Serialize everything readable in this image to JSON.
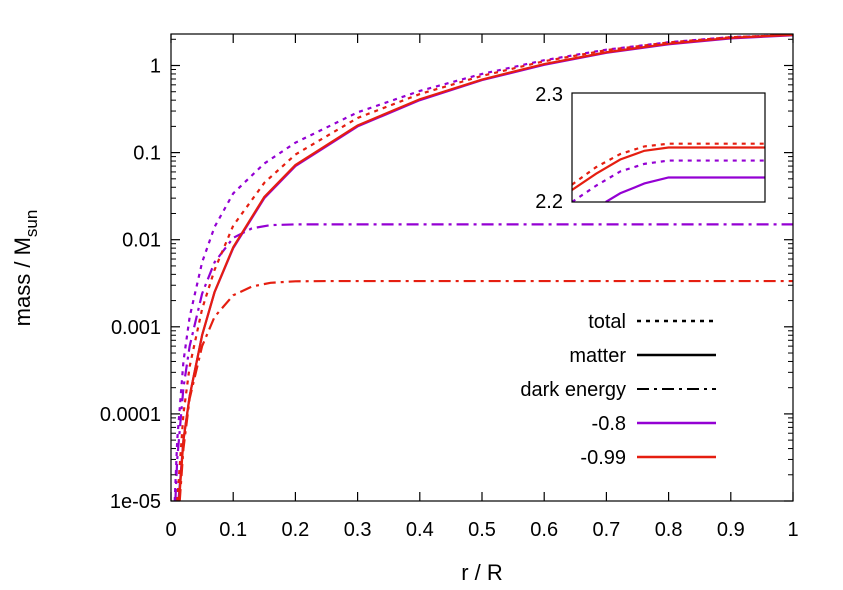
{
  "chart_data": {
    "type": "line",
    "xlabel": "r / R",
    "ylabel": "mass / M",
    "ylabel_sub": "sun",
    "xlim": [
      0,
      1
    ],
    "ylim": [
      1e-05,
      2.3
    ],
    "yscale": "log",
    "x_ticks": [
      "0",
      "0.1",
      "0.2",
      "0.3",
      "0.4",
      "0.5",
      "0.6",
      "0.7",
      "0.8",
      "0.9",
      "1"
    ],
    "y_ticks": [
      "1e-05",
      "0.0001",
      "0.001",
      "0.01",
      "0.1",
      "1"
    ],
    "grid": false,
    "legend": {
      "position": "center-right",
      "style_entries": [
        {
          "label": "total",
          "dash": "dotted"
        },
        {
          "label": "matter",
          "dash": "solid"
        },
        {
          "label": "dark energy",
          "dash": "dashdot"
        }
      ],
      "color_entries": [
        {
          "label": "-0.8",
          "color": "#9400d3"
        },
        {
          "label": "-0.99",
          "color": "#e51e10"
        }
      ]
    },
    "series": [
      {
        "group": "-0.8",
        "kind": "total",
        "color": "#9400d3",
        "dash": "dotted",
        "x": [
          0.006,
          0.01,
          0.02,
          0.03,
          0.05,
          0.07,
          0.1,
          0.15,
          0.2,
          0.3,
          0.4,
          0.5,
          0.6,
          0.7,
          0.8,
          0.9,
          1.0
        ],
        "y": [
          1e-05,
          5e-05,
          0.0004,
          0.0013,
          0.0055,
          0.014,
          0.034,
          0.075,
          0.13,
          0.29,
          0.51,
          0.8,
          1.15,
          1.52,
          1.85,
          2.12,
          2.236
        ]
      },
      {
        "group": "-0.8",
        "kind": "matter",
        "color": "#9400d3",
        "dash": "solid",
        "x": [
          0.012,
          0.02,
          0.03,
          0.05,
          0.07,
          0.1,
          0.15,
          0.2,
          0.3,
          0.4,
          0.5,
          0.6,
          0.7,
          0.8,
          0.9,
          1.0
        ],
        "y": [
          1e-05,
          5e-05,
          0.00016,
          0.0008,
          0.0025,
          0.008,
          0.03,
          0.07,
          0.2,
          0.4,
          0.68,
          1.02,
          1.4,
          1.75,
          2.05,
          2.221
        ]
      },
      {
        "group": "-0.8",
        "kind": "dark energy",
        "color": "#9400d3",
        "dash": "dashdot",
        "x": [
          0.007,
          0.01,
          0.02,
          0.03,
          0.05,
          0.07,
          0.1,
          0.13,
          0.16,
          0.2,
          0.25,
          0.3,
          1.0
        ],
        "y": [
          1e-05,
          3e-05,
          0.0002,
          0.0006,
          0.0024,
          0.0055,
          0.0105,
          0.0135,
          0.0147,
          0.015,
          0.015,
          0.015,
          0.015
        ]
      },
      {
        "group": "-0.99",
        "kind": "total",
        "color": "#e51e10",
        "dash": "dotted",
        "x": [
          0.01,
          0.02,
          0.03,
          0.05,
          0.07,
          0.1,
          0.15,
          0.2,
          0.3,
          0.4,
          0.5,
          0.6,
          0.7,
          0.8,
          0.9,
          1.0
        ],
        "y": [
          1e-05,
          0.0001,
          0.00035,
          0.0016,
          0.0045,
          0.0145,
          0.045,
          0.095,
          0.25,
          0.47,
          0.76,
          1.12,
          1.5,
          1.84,
          2.11,
          2.25
        ]
      },
      {
        "group": "-0.99",
        "kind": "matter",
        "color": "#e51e10",
        "dash": "solid",
        "x": [
          0.013,
          0.02,
          0.03,
          0.05,
          0.07,
          0.1,
          0.15,
          0.2,
          0.3,
          0.4,
          0.5,
          0.6,
          0.7,
          0.8,
          0.9,
          1.0
        ],
        "y": [
          1e-05,
          5e-05,
          0.00016,
          0.0008,
          0.0025,
          0.0082,
          0.031,
          0.072,
          0.205,
          0.41,
          0.69,
          1.04,
          1.42,
          1.78,
          2.08,
          2.248
        ]
      },
      {
        "group": "-0.99",
        "kind": "dark energy",
        "color": "#e51e10",
        "dash": "dashdot",
        "x": [
          0.014,
          0.02,
          0.03,
          0.05,
          0.07,
          0.1,
          0.13,
          0.16,
          0.2,
          0.25,
          1.0
        ],
        "y": [
          1e-05,
          4e-05,
          0.00015,
          0.0006,
          0.0013,
          0.0023,
          0.0029,
          0.0032,
          0.00333,
          0.00335,
          0.00335
        ]
      }
    ],
    "inset": {
      "xlim": [
        0.6,
        1.0
      ],
      "ylim": [
        2.2,
        2.3
      ],
      "y_ticks": [
        "2.3",
        "2.2"
      ],
      "series": [
        {
          "group": "-0.99",
          "kind": "total",
          "color": "#e51e10",
          "dash": "dotted",
          "x": [
            0.6,
            0.65,
            0.7,
            0.75,
            0.8,
            0.85,
            1.0
          ],
          "y": [
            2.216,
            2.232,
            2.244,
            2.251,
            2.2535,
            2.2535,
            2.2535
          ]
        },
        {
          "group": "-0.99",
          "kind": "matter",
          "color": "#e51e10",
          "dash": "solid",
          "x": [
            0.6,
            0.65,
            0.7,
            0.75,
            0.8,
            0.85,
            1.0
          ],
          "y": [
            2.211,
            2.226,
            2.239,
            2.247,
            2.25,
            2.25,
            2.25
          ]
        },
        {
          "group": "-0.8",
          "kind": "total",
          "color": "#9400d3",
          "dash": "dotted",
          "x": [
            0.6,
            0.65,
            0.7,
            0.75,
            0.8,
            0.85,
            1.0
          ],
          "y": [
            2.2,
            2.215,
            2.228,
            2.235,
            2.238,
            2.238,
            2.238
          ]
        },
        {
          "group": "-0.8",
          "kind": "matter",
          "color": "#9400d3",
          "dash": "solid",
          "x": [
            0.67,
            0.7,
            0.75,
            0.8,
            0.85,
            1.0
          ],
          "y": [
            2.2,
            2.208,
            2.217,
            2.2225,
            2.2225,
            2.2225
          ]
        }
      ]
    }
  }
}
